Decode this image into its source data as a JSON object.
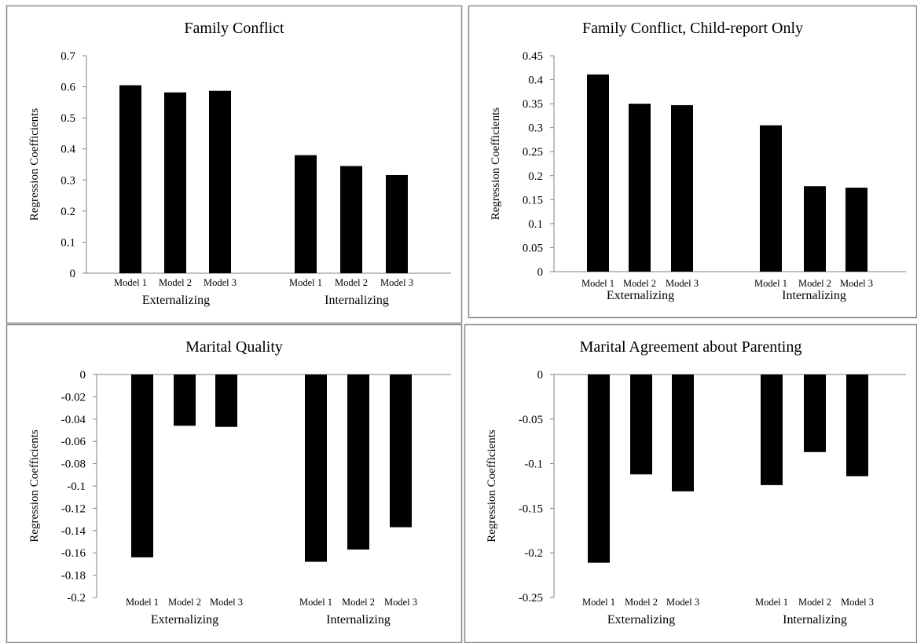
{
  "chart_data": [
    {
      "type": "bar",
      "title": "Family Conflict",
      "ylabel": "Regression Coefficients",
      "groups": [
        "Externalizing",
        "Internalizing"
      ],
      "categories": [
        "Model 1",
        "Model 2",
        "Model 3"
      ],
      "values": [
        [
          0.605,
          0.582,
          0.587
        ],
        [
          0.38,
          0.345,
          0.316
        ]
      ],
      "ylim": [
        0,
        0.7
      ],
      "yticks": [
        0,
        0.1,
        0.2,
        0.3,
        0.4,
        0.5,
        0.6,
        0.7
      ],
      "ytick_labels": [
        "0",
        "0.1",
        "0.2",
        "0.3",
        "0.4",
        "0.5",
        "0.6",
        "0.7"
      ],
      "grid": false,
      "legend": "none",
      "bar_color": "#000000"
    },
    {
      "type": "bar",
      "title": "Family Conflict, Child-report Only",
      "ylabel": "Regression Coefficients",
      "groups": [
        "Externalizing",
        "Internalizing"
      ],
      "categories": [
        "Model 1",
        "Model 2",
        "Model 3"
      ],
      "values": [
        [
          0.411,
          0.35,
          0.347
        ],
        [
          0.305,
          0.178,
          0.175
        ]
      ],
      "ylim": [
        0,
        0.45
      ],
      "yticks": [
        0,
        0.05,
        0.1,
        0.15,
        0.2,
        0.25,
        0.3,
        0.35,
        0.4,
        0.45
      ],
      "ytick_labels": [
        "0",
        "0.05",
        "0.1",
        "0.15",
        "0.2",
        "0.25",
        "0.3",
        "0.35",
        "0.4",
        "0.45"
      ],
      "grid": false,
      "legend": "none",
      "bar_color": "#000000"
    },
    {
      "type": "bar",
      "title": "Marital Quality",
      "ylabel": "Regression Coefficients",
      "groups": [
        "Externalizing",
        "Internalizing"
      ],
      "categories": [
        "Model 1",
        "Model 2",
        "Model 3"
      ],
      "values": [
        [
          -0.164,
          -0.046,
          -0.047
        ],
        [
          -0.168,
          -0.157,
          -0.137
        ]
      ],
      "ylim": [
        -0.2,
        0
      ],
      "yticks": [
        0,
        -0.02,
        -0.04,
        -0.06,
        -0.08,
        -0.1,
        -0.12,
        -0.14,
        -0.16,
        -0.18,
        -0.2
      ],
      "ytick_labels": [
        "0",
        "-0.02",
        "-0.04",
        "-0.06",
        "-0.08",
        "-0.1",
        "-0.12",
        "-0.14",
        "-0.16",
        "-0.18",
        "-0.2"
      ],
      "grid": false,
      "legend": "none",
      "bar_color": "#000000"
    },
    {
      "type": "bar",
      "title": "Marital Agreement about Parenting",
      "ylabel": "Regression Coefficients",
      "groups": [
        "Externalizing",
        "Internalizing"
      ],
      "categories": [
        "Model 1",
        "Model 2",
        "Model 3"
      ],
      "values": [
        [
          -0.211,
          -0.112,
          -0.131
        ],
        [
          -0.124,
          -0.087,
          -0.114
        ]
      ],
      "ylim": [
        -0.25,
        0
      ],
      "yticks": [
        0,
        -0.05,
        -0.1,
        -0.15,
        -0.2,
        -0.25
      ],
      "ytick_labels": [
        "0",
        "-0.05",
        "-0.1",
        "-0.15",
        "-0.2",
        "-0.25"
      ],
      "grid": false,
      "legend": "none",
      "bar_color": "#000000"
    }
  ]
}
